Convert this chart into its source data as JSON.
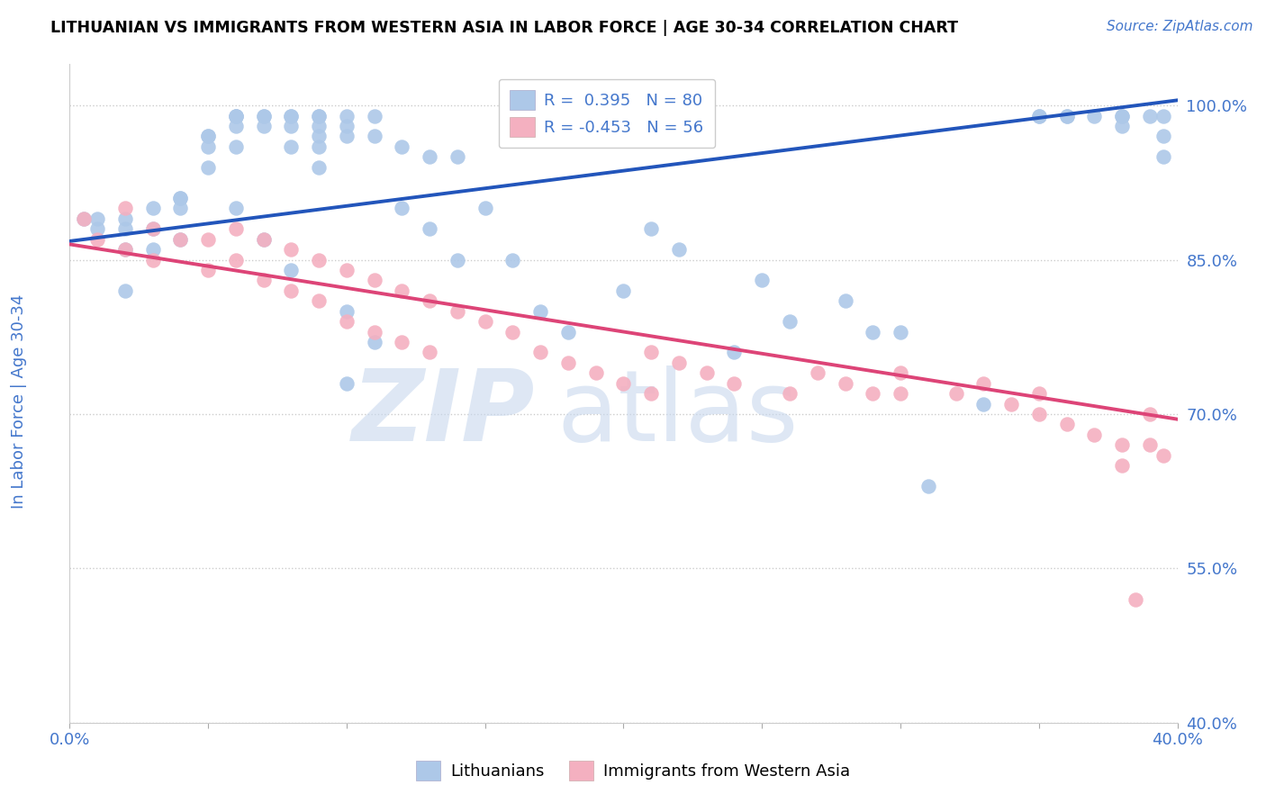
{
  "title": "LITHUANIAN VS IMMIGRANTS FROM WESTERN ASIA IN LABOR FORCE | AGE 30-34 CORRELATION CHART",
  "source": "Source: ZipAtlas.com",
  "ylabel": "In Labor Force | Age 30-34",
  "xlim": [
    0.0,
    0.4
  ],
  "ylim": [
    0.4,
    1.04
  ],
  "xticks": [
    0.0,
    0.05,
    0.1,
    0.15,
    0.2,
    0.25,
    0.3,
    0.35,
    0.4
  ],
  "yticks": [
    0.4,
    0.55,
    0.7,
    0.85,
    1.0
  ],
  "blue_R": 0.395,
  "blue_N": 80,
  "pink_R": -0.453,
  "pink_N": 56,
  "blue_color": "#adc8e8",
  "pink_color": "#f4b0c0",
  "blue_line_color": "#2255bb",
  "pink_line_color": "#dd4477",
  "legend_blue_label": "Lithuanians",
  "legend_pink_label": "Immigrants from Western Asia",
  "blue_x": [
    0.005,
    0.01,
    0.01,
    0.02,
    0.02,
    0.02,
    0.02,
    0.03,
    0.03,
    0.03,
    0.04,
    0.04,
    0.04,
    0.04,
    0.05,
    0.05,
    0.05,
    0.05,
    0.06,
    0.06,
    0.06,
    0.06,
    0.06,
    0.06,
    0.07,
    0.07,
    0.07,
    0.07,
    0.08,
    0.08,
    0.08,
    0.08,
    0.08,
    0.09,
    0.09,
    0.09,
    0.09,
    0.09,
    0.09,
    0.1,
    0.1,
    0.1,
    0.1,
    0.1,
    0.11,
    0.11,
    0.11,
    0.12,
    0.12,
    0.13,
    0.13,
    0.14,
    0.14,
    0.15,
    0.16,
    0.17,
    0.18,
    0.2,
    0.21,
    0.22,
    0.24,
    0.25,
    0.26,
    0.28,
    0.29,
    0.3,
    0.31,
    0.33,
    0.35,
    0.35,
    0.36,
    0.36,
    0.37,
    0.38,
    0.38,
    0.38,
    0.39,
    0.395,
    0.395,
    0.395
  ],
  "blue_y": [
    0.89,
    0.89,
    0.88,
    0.89,
    0.88,
    0.86,
    0.82,
    0.9,
    0.88,
    0.86,
    0.91,
    0.91,
    0.9,
    0.87,
    0.97,
    0.96,
    0.97,
    0.94,
    0.99,
    0.99,
    0.99,
    0.98,
    0.96,
    0.9,
    0.99,
    0.99,
    0.98,
    0.87,
    0.99,
    0.99,
    0.98,
    0.96,
    0.84,
    0.99,
    0.99,
    0.98,
    0.97,
    0.96,
    0.94,
    0.99,
    0.98,
    0.97,
    0.8,
    0.73,
    0.99,
    0.97,
    0.77,
    0.96,
    0.9,
    0.95,
    0.88,
    0.95,
    0.85,
    0.9,
    0.85,
    0.8,
    0.78,
    0.82,
    0.88,
    0.86,
    0.76,
    0.83,
    0.79,
    0.81,
    0.78,
    0.78,
    0.63,
    0.71,
    0.99,
    0.99,
    0.99,
    0.99,
    0.99,
    0.99,
    0.99,
    0.98,
    0.99,
    0.99,
    0.97,
    0.95
  ],
  "pink_x": [
    0.005,
    0.01,
    0.02,
    0.02,
    0.03,
    0.03,
    0.04,
    0.05,
    0.05,
    0.06,
    0.06,
    0.07,
    0.07,
    0.08,
    0.08,
    0.09,
    0.09,
    0.1,
    0.1,
    0.11,
    0.11,
    0.12,
    0.12,
    0.13,
    0.13,
    0.14,
    0.15,
    0.16,
    0.17,
    0.18,
    0.19,
    0.2,
    0.21,
    0.21,
    0.22,
    0.23,
    0.24,
    0.26,
    0.27,
    0.28,
    0.29,
    0.3,
    0.3,
    0.32,
    0.33,
    0.34,
    0.35,
    0.35,
    0.36,
    0.37,
    0.38,
    0.38,
    0.385,
    0.39,
    0.39,
    0.395
  ],
  "pink_y": [
    0.89,
    0.87,
    0.9,
    0.86,
    0.88,
    0.85,
    0.87,
    0.87,
    0.84,
    0.88,
    0.85,
    0.87,
    0.83,
    0.86,
    0.82,
    0.85,
    0.81,
    0.84,
    0.79,
    0.83,
    0.78,
    0.82,
    0.77,
    0.81,
    0.76,
    0.8,
    0.79,
    0.78,
    0.76,
    0.75,
    0.74,
    0.73,
    0.76,
    0.72,
    0.75,
    0.74,
    0.73,
    0.72,
    0.74,
    0.73,
    0.72,
    0.74,
    0.72,
    0.72,
    0.73,
    0.71,
    0.72,
    0.7,
    0.69,
    0.68,
    0.67,
    0.65,
    0.52,
    0.7,
    0.67,
    0.66
  ],
  "blue_line_x0": 0.0,
  "blue_line_y0": 0.868,
  "blue_line_x1": 0.4,
  "blue_line_y1": 1.005,
  "pink_line_x0": 0.0,
  "pink_line_y0": 0.865,
  "pink_line_x1": 0.4,
  "pink_line_y1": 0.695
}
